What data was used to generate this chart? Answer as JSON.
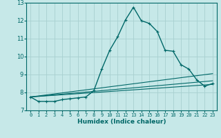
{
  "title": "",
  "xlabel": "Humidex (Indice chaleur)",
  "ylabel": "",
  "background_color": "#c6e8e8",
  "grid_color": "#a8d0d0",
  "line_color": "#006868",
  "xlim": [
    -0.5,
    23.5
  ],
  "ylim": [
    7,
    13
  ],
  "xticks": [
    0,
    1,
    2,
    3,
    4,
    5,
    6,
    7,
    8,
    9,
    10,
    11,
    12,
    13,
    14,
    15,
    16,
    17,
    18,
    19,
    20,
    21,
    22,
    23
  ],
  "yticks": [
    7,
    8,
    9,
    10,
    11,
    12,
    13
  ],
  "series": [
    {
      "x": [
        0,
        1,
        2,
        3,
        4,
        5,
        6,
        7,
        8,
        9,
        10,
        11,
        12,
        13,
        14,
        15,
        16,
        17,
        18,
        19,
        20,
        21,
        22,
        23
      ],
      "y": [
        7.75,
        7.5,
        7.5,
        7.5,
        7.6,
        7.65,
        7.7,
        7.75,
        8.1,
        9.3,
        10.35,
        11.1,
        12.05,
        12.75,
        12.0,
        11.85,
        11.4,
        10.35,
        10.3,
        9.55,
        9.3,
        8.7,
        8.35,
        8.5
      ],
      "marker": "+",
      "linestyle": "-",
      "linewidth": 1.0
    },
    {
      "x": [
        0,
        23
      ],
      "y": [
        7.75,
        9.05
      ],
      "marker": null,
      "linestyle": "-",
      "linewidth": 0.8
    },
    {
      "x": [
        0,
        23
      ],
      "y": [
        7.75,
        8.65
      ],
      "marker": null,
      "linestyle": "-",
      "linewidth": 0.8
    },
    {
      "x": [
        0,
        23
      ],
      "y": [
        7.75,
        8.45
      ],
      "marker": null,
      "linestyle": "-",
      "linewidth": 0.8
    }
  ]
}
